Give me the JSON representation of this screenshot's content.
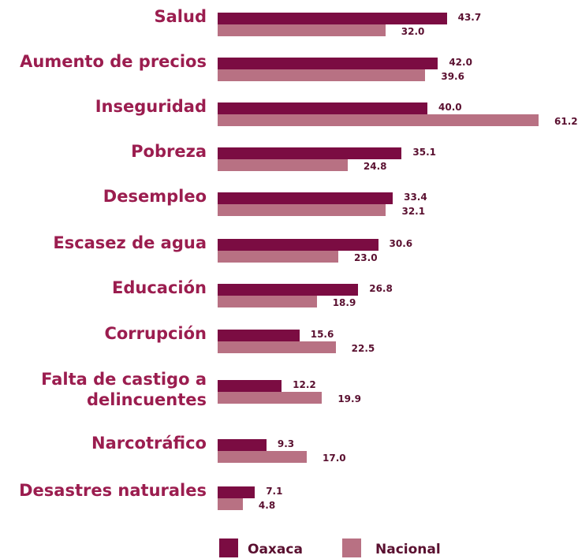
{
  "chart_data": {
    "type": "bar",
    "orientation": "horizontal",
    "categories": [
      "Salud",
      "Aumento de precios",
      "Inseguridad",
      "Pobreza",
      "Desempleo",
      "Escasez de agua",
      "Educación",
      "Corrupción",
      "Falta de castigo a delincuentes",
      "Narcotráfico",
      "Desastres naturales"
    ],
    "series": [
      {
        "name": "Oaxaca",
        "color": "#7b0c42",
        "values": [
          43.7,
          42.0,
          40.0,
          35.1,
          33.4,
          30.6,
          26.8,
          15.6,
          12.2,
          9.3,
          7.1
        ],
        "value_labels": [
          "43.7",
          "42.0",
          "40.0",
          "35.1",
          "33.4",
          "30.6",
          "26.8",
          "15.6",
          "12.2",
          "9.3",
          "7.1"
        ]
      },
      {
        "name": "Nacional",
        "color": "#b87183",
        "values": [
          32.0,
          39.6,
          61.2,
          24.8,
          32.1,
          23.0,
          18.9,
          22.5,
          19.9,
          17.0,
          4.8
        ],
        "value_labels": [
          "32.0",
          "39.6",
          "61.2",
          "24.8",
          "32.1",
          "23.0",
          "18.9",
          "22.5",
          "19.9",
          "17.0",
          "4.8"
        ]
      }
    ],
    "legend": "bottom"
  }
}
